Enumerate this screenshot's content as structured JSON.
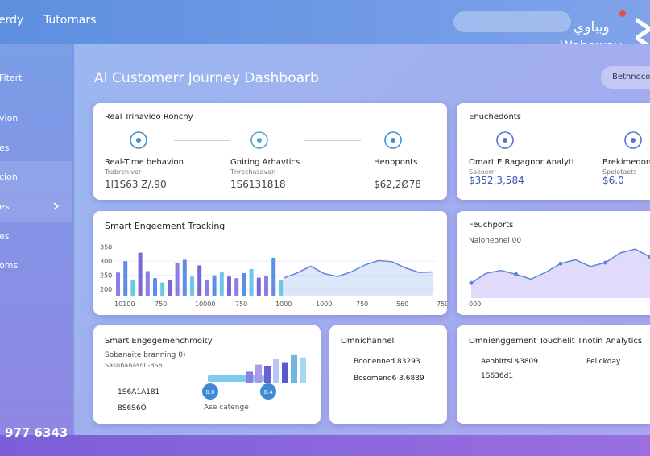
{
  "topbar": {
    "brand": "erdy",
    "menu": "Tutornars",
    "logo_arabic": "ويباوي",
    "logo": "Webaway"
  },
  "sidebar": {
    "items": [
      "Fitert",
      "vion",
      "es",
      "cion",
      "es",
      "es",
      "oms"
    ],
    "phone": "977 6343"
  },
  "header": {
    "title": "AI Customerr Journey Dashboarb",
    "button": "Bethnocor"
  },
  "cards": [
    {
      "title": "Real Trinavioo Ronchy",
      "items": [
        {
          "label": "Real-Time behavion",
          "sub": "Trabrehiver",
          "value": "1l1S63 Z/.90"
        },
        {
          "label": "Gniring Arhavtics",
          "sub": "Tnrechasavan",
          "value": "1S6131818"
        },
        {
          "label": "Henbponts",
          "sub": "",
          "value": "$62,2Ø78"
        }
      ]
    },
    {
      "title": "Enuchedonts",
      "items": [
        {
          "label": "Omart E Ragagnor Analytt",
          "sub": "Saeoerr",
          "value": "$352,3,584"
        },
        {
          "label": "Brekimedorr",
          "sub": "Spelotaets",
          "value": "$6.0"
        }
      ]
    },
    {
      "title": "Smart Engeement Tracking",
      "chart": {
        "type": "bar",
        "ylim": [
          175,
          380
        ],
        "yticks": [
          350,
          300,
          250,
          200
        ],
        "x_labels": [
          "10100",
          "750",
          "10000",
          "750",
          "1000",
          "1000",
          "750",
          "560",
          "750"
        ],
        "bar_colors": [
          "#8d7ee6",
          "#5d8fe8",
          "#70c6ea",
          "#7868d8"
        ],
        "bars": [
          260,
          300,
          235,
          330,
          265,
          240,
          225,
          232,
          295,
          305,
          246,
          285,
          232,
          250,
          262,
          246,
          240,
          258,
          272,
          242,
          248,
          312,
          232
        ],
        "line": [
          240,
          258,
          282,
          256,
          246,
          262,
          286,
          302,
          298,
          276,
          260,
          262
        ]
      }
    },
    {
      "title": "Feuchports",
      "subtitle": "Naloneonel 00",
      "chart": {
        "type": "area",
        "ylim": [
          0,
          100
        ],
        "x_label": "000",
        "values": [
          18,
          38,
          44,
          36,
          26,
          40,
          58,
          66,
          52,
          60,
          80,
          88,
          72
        ]
      }
    },
    {
      "title": "Smart Engegemenchmoity",
      "lines": [
        "Sobanaite branning 0)",
        "Sasubanasd0-8S6"
      ],
      "stats": [
        "1S6A1A181",
        "8S6S6Ö"
      ],
      "note": "Ase catenge",
      "bubbles": [
        "0.0",
        "0.4"
      ],
      "chart": {
        "type": "bar",
        "ylim": [
          0,
          60
        ],
        "values": [
          20,
          32,
          30,
          42,
          36,
          48,
          44
        ],
        "colors": [
          "#8b7fe0",
          "#a99cf0",
          "#6a5fd6",
          "#b9c6f5",
          "#5a59d0",
          "#6fb8e6",
          "#a6d7f0"
        ]
      }
    },
    {
      "title": "Omnichannel",
      "stats": [
        "Boonenned 83293",
        "Bosomend6 3.6839"
      ]
    },
    {
      "title": "Omnienggement Touchelit Tnotin Analytics",
      "stats": [
        "Aeobittsi $3809",
        "1S636d1"
      ],
      "side": "Pelickday"
    }
  ]
}
